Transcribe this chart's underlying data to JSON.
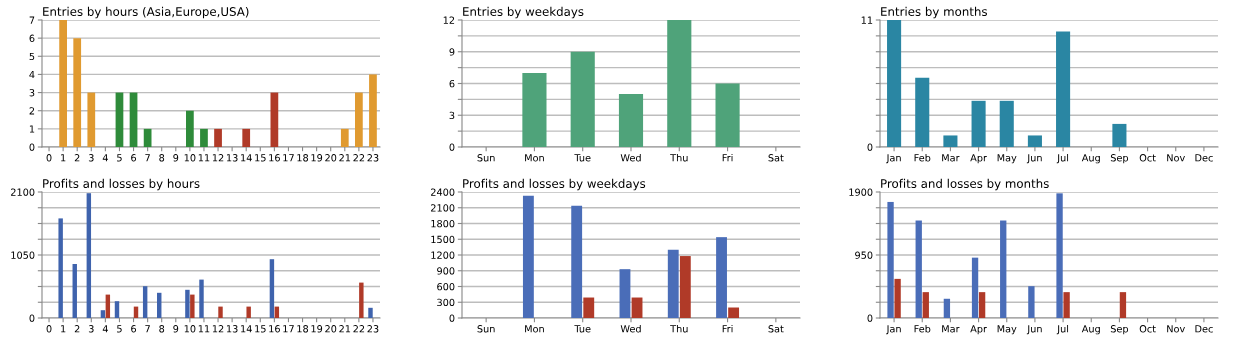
{
  "chart_data": [
    {
      "type": "bar",
      "title": "Entries by hours (Asia,Europe,USA)",
      "categories": [
        "0",
        "1",
        "2",
        "3",
        "4",
        "5",
        "6",
        "7",
        "8",
        "9",
        "10",
        "11",
        "12",
        "13",
        "14",
        "15",
        "16",
        "17",
        "18",
        "19",
        "20",
        "21",
        "22",
        "23"
      ],
      "values": [
        null,
        7,
        6,
        3,
        null,
        3,
        3,
        1,
        null,
        null,
        2,
        1,
        1,
        null,
        1,
        null,
        3,
        null,
        null,
        null,
        null,
        1,
        3,
        4
      ],
      "colors": [
        "#e09a30",
        "#e09a30",
        "#e09a30",
        "#e09a30",
        "#e09a30",
        "#2e8b3a",
        "#2e8b3a",
        "#2e8b3a",
        "#2e8b3a",
        "#2e8b3a",
        "#2e8b3a",
        "#2e8b3a",
        "#b03a28",
        "#b03a28",
        "#b03a28",
        "#b03a28",
        "#b03a28",
        "#e09a30",
        "#e09a30",
        "#e09a30",
        "#e09a30",
        "#e09a30",
        "#e09a30",
        "#e09a30"
      ],
      "ylim": [
        0,
        7
      ],
      "yticks": [
        0,
        1,
        2,
        3,
        4,
        5,
        6,
        7
      ],
      "grid": "y"
    },
    {
      "type": "bar",
      "title": "Entries by weekdays",
      "categories": [
        "Sun",
        "Mon",
        "Tue",
        "Wed",
        "Thu",
        "Fri",
        "Sat"
      ],
      "values": [
        null,
        7,
        9,
        5,
        12,
        6,
        null
      ],
      "color": "#4fa37a",
      "ylim": [
        0,
        12
      ],
      "yticks": [
        0,
        {
          "value": 1.5,
          "label": null
        },
        3,
        {
          "value": 4.5,
          "label": null
        },
        6,
        {
          "value": 7.5,
          "label": null
        },
        9,
        {
          "value": 10.5,
          "label": null
        },
        12
      ],
      "grid": "y"
    },
    {
      "type": "bar",
      "title": "Entries by months",
      "categories": [
        "Jan",
        "Feb",
        "Mar",
        "Apr",
        "May",
        "Jun",
        "Jul",
        "Aug",
        "Sep",
        "Oct",
        "Nov",
        "Dec"
      ],
      "values": [
        11,
        6,
        1,
        4,
        4,
        1,
        10,
        null,
        2,
        null,
        null,
        null
      ],
      "color": "#2a86a3",
      "ylim": [
        0,
        11
      ],
      "yticks": [
        0,
        {
          "value": 1.375,
          "label": null
        },
        {
          "value": 2.75,
          "label": null
        },
        {
          "value": 4.125,
          "label": null
        },
        {
          "value": 5.5,
          "label": null
        },
        {
          "value": 6.875,
          "label": null
        },
        {
          "value": 8.25,
          "label": null
        },
        {
          "value": 9.625,
          "label": null
        },
        11
      ],
      "grid": "y"
    },
    {
      "type": "bar",
      "title": "Profits and losses by hours",
      "categories": [
        "0",
        "1",
        "2",
        "3",
        "4",
        "5",
        "6",
        "7",
        "8",
        "9",
        "10",
        "11",
        "12",
        "13",
        "14",
        "15",
        "16",
        "17",
        "18",
        "19",
        "20",
        "21",
        "22",
        "23"
      ],
      "series": [
        {
          "color": "#3f63ad",
          "values": [
            null,
            1660,
            900,
            2080,
            130,
            280,
            null,
            530,
            420,
            null,
            470,
            640,
            null,
            null,
            null,
            null,
            980,
            null,
            null,
            null,
            null,
            null,
            null,
            170
          ]
        },
        {
          "color": "#b03a28",
          "values": [
            null,
            null,
            null,
            null,
            390,
            null,
            190,
            null,
            null,
            null,
            390,
            null,
            190,
            null,
            190,
            null,
            190,
            null,
            null,
            null,
            null,
            null,
            590,
            null
          ]
        }
      ],
      "ylim": [
        0,
        2100
      ],
      "yticks": [
        0,
        {
          "value": 262.5,
          "label": null
        },
        {
          "value": 525,
          "label": null
        },
        {
          "value": 787.5,
          "label": null
        },
        1050,
        {
          "value": 1312.5,
          "label": null
        },
        {
          "value": 1575,
          "label": null
        },
        {
          "value": 1837.5,
          "label": null
        },
        2100
      ],
      "grid": "y"
    },
    {
      "type": "bar",
      "title": "Profits and losses by weekdays",
      "categories": [
        "Sun",
        "Mon",
        "Tue",
        "Wed",
        "Thu",
        "Fri",
        "Sat"
      ],
      "series": [
        {
          "color": "#4a6db8",
          "values": [
            null,
            2330,
            2140,
            930,
            1300,
            1540,
            null
          ]
        },
        {
          "color": "#b03a28",
          "values": [
            null,
            null,
            390,
            390,
            1180,
            200,
            null
          ]
        }
      ],
      "ylim": [
        0,
        2400
      ],
      "yticks": [
        0,
        300,
        600,
        900,
        1200,
        1500,
        1800,
        2100,
        2400
      ],
      "grid": "y"
    },
    {
      "type": "bar",
      "title": "Profits and losses by months",
      "categories": [
        "Jan",
        "Feb",
        "Mar",
        "Apr",
        "May",
        "Jun",
        "Jul",
        "Aug",
        "Sep",
        "Oct",
        "Nov",
        "Dec"
      ],
      "series": [
        {
          "color": "#4a6db8",
          "values": [
            1750,
            1470,
            290,
            910,
            1470,
            480,
            1880,
            null,
            null,
            null,
            null,
            null
          ]
        },
        {
          "color": "#b03a28",
          "values": [
            590,
            390,
            null,
            390,
            null,
            null,
            390,
            null,
            390,
            null,
            null,
            null
          ]
        }
      ],
      "ylim": [
        0,
        1900
      ],
      "yticks": [
        0,
        {
          "value": 237.5,
          "label": null
        },
        {
          "value": 475,
          "label": null
        },
        {
          "value": 712.5,
          "label": null
        },
        950,
        {
          "value": 1187.5,
          "label": null
        },
        {
          "value": 1425,
          "label": null
        },
        {
          "value": 1662.5,
          "label": null
        },
        1900
      ],
      "grid": "y"
    }
  ]
}
